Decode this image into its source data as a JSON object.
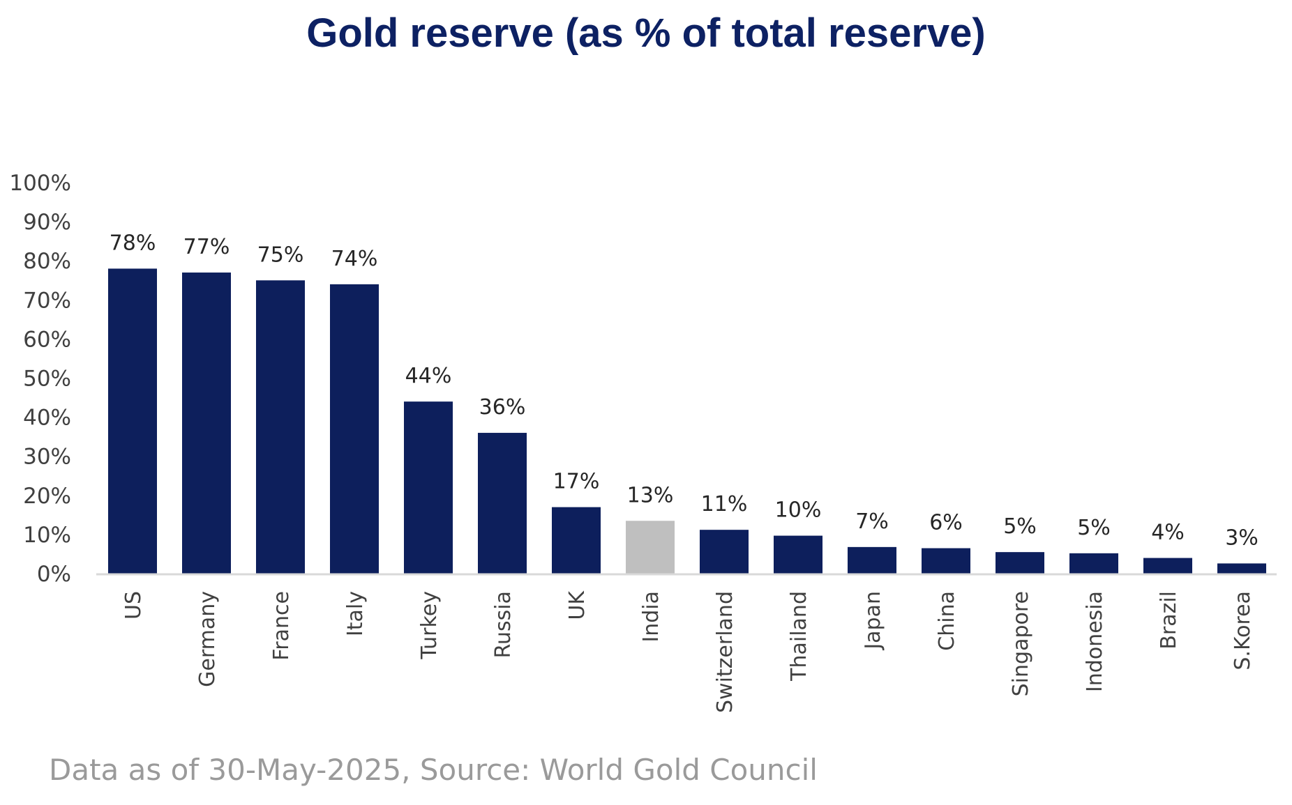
{
  "chart_data": {
    "type": "bar",
    "title": "Gold reserve (as % of total reserve)",
    "categories": [
      "US",
      "Germany",
      "France",
      "Italy",
      "Turkey",
      "Russia",
      "UK",
      "India",
      "Switzerland",
      "Thailand",
      "Japan",
      "China",
      "Singapore",
      "Indonesia",
      "Brazil",
      "S.Korea"
    ],
    "values": [
      78,
      77,
      75,
      74,
      44,
      36,
      17,
      13,
      11,
      10,
      7,
      6,
      5,
      5,
      4,
      3
    ],
    "bar_heights": [
      78,
      77,
      75,
      74,
      44,
      36,
      17,
      13.5,
      11.2,
      9.7,
      6.8,
      6.5,
      5.5,
      5.2,
      4,
      2.6
    ],
    "data_labels": [
      "78%",
      "77%",
      "75%",
      "74%",
      "44%",
      "36%",
      "17%",
      "13%",
      "11%",
      "10%",
      "7%",
      "6%",
      "5%",
      "5%",
      "4%",
      "3%"
    ],
    "y_ticks": [
      0,
      10,
      20,
      30,
      40,
      50,
      60,
      70,
      80,
      90,
      100
    ],
    "y_tick_labels": [
      "0%",
      "10%",
      "20%",
      "30%",
      "40%",
      "50%",
      "60%",
      "70%",
      "80%",
      "90%",
      "100%"
    ],
    "ylim": [
      0,
      100
    ],
    "xlabel": "",
    "ylabel": "",
    "grid": false,
    "legend": "none",
    "colors": {
      "default_bar": "#0d1f5c",
      "highlight_bar": "#bfbfbf",
      "highlight_category": "India",
      "title": "#0d2163",
      "axis_line": "#d9d9d9",
      "note": "#9a9a9a"
    }
  },
  "footer": {
    "source_note": "Data as of 30-May-2025, Source: World Gold Council"
  }
}
